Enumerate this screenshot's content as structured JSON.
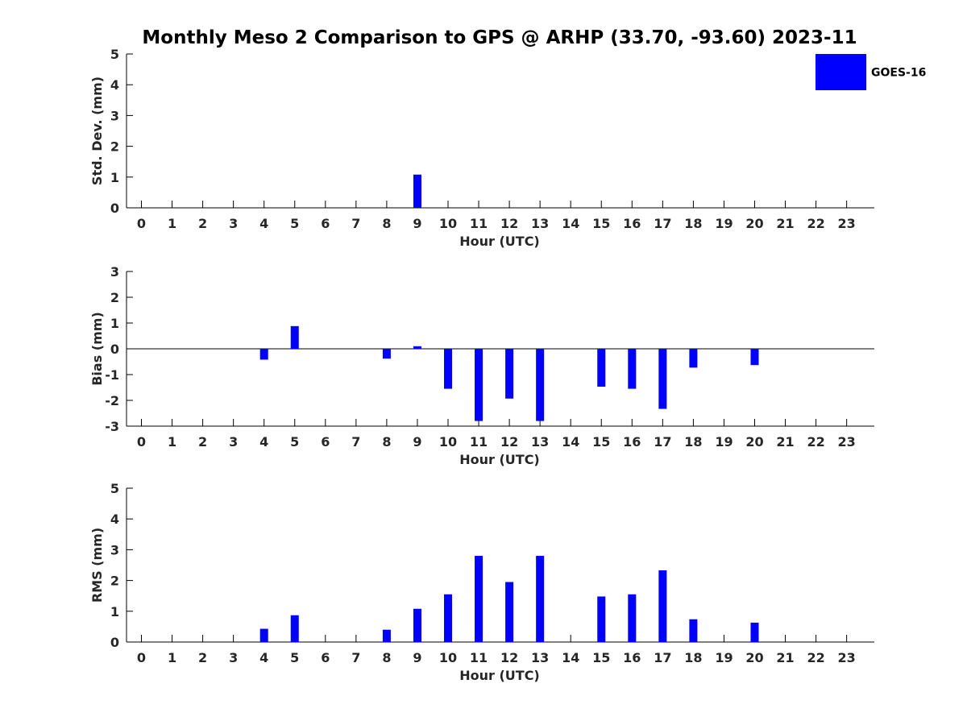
{
  "title": "Monthly Meso 2 Comparison to GPS @ ARHP (33.70, -93.60) 2023-11",
  "legend": {
    "label": "GOES-16",
    "color": "#0000ff",
    "placement": "top-right"
  },
  "chart_data": [
    {
      "type": "bar",
      "ylabel": "Std. Dev. (mm)",
      "xlabel": "Hour (UTC)",
      "ylim": [
        0,
        5
      ],
      "yticks": [
        "0",
        "1",
        "2",
        "3",
        "4",
        "5"
      ],
      "categories": [
        "0",
        "1",
        "2",
        "3",
        "4",
        "5",
        "6",
        "7",
        "8",
        "9",
        "10",
        "11",
        "12",
        "13",
        "14",
        "15",
        "16",
        "17",
        "18",
        "19",
        "20",
        "21",
        "22",
        "23"
      ],
      "series": [
        {
          "name": "GOES-16",
          "color": "#0000ff",
          "values": [
            0,
            0,
            0,
            0,
            0,
            0,
            0,
            0,
            0,
            1.08,
            0,
            0,
            0,
            0,
            0,
            0,
            0,
            0,
            0,
            0,
            0,
            0,
            0,
            0
          ]
        }
      ]
    },
    {
      "type": "bar",
      "ylabel": "Bias (mm)",
      "xlabel": "Hour (UTC)",
      "ylim": [
        -3,
        3
      ],
      "yticks": [
        "-3",
        "-2",
        "-1",
        "0",
        "1",
        "2",
        "3"
      ],
      "zero_line": true,
      "categories": [
        "0",
        "1",
        "2",
        "3",
        "4",
        "5",
        "6",
        "7",
        "8",
        "9",
        "10",
        "11",
        "12",
        "13",
        "14",
        "15",
        "16",
        "17",
        "18",
        "19",
        "20",
        "21",
        "22",
        "23"
      ],
      "series": [
        {
          "name": "GOES-16",
          "color": "#0000ff",
          "values": [
            0,
            0,
            0,
            0,
            -0.42,
            0.88,
            0,
            0,
            -0.38,
            0.1,
            -1.55,
            -2.8,
            -1.93,
            -2.8,
            0,
            -1.47,
            -1.55,
            -2.33,
            -0.73,
            0,
            -0.63,
            0,
            0,
            0
          ]
        }
      ]
    },
    {
      "type": "bar",
      "ylabel": "RMS (mm)",
      "xlabel": "Hour (UTC)",
      "ylim": [
        0,
        5
      ],
      "yticks": [
        "0",
        "1",
        "2",
        "3",
        "4",
        "5"
      ],
      "categories": [
        "0",
        "1",
        "2",
        "3",
        "4",
        "5",
        "6",
        "7",
        "8",
        "9",
        "10",
        "11",
        "12",
        "13",
        "14",
        "15",
        "16",
        "17",
        "18",
        "19",
        "20",
        "21",
        "22",
        "23"
      ],
      "series": [
        {
          "name": "GOES-16",
          "color": "#0000ff",
          "values": [
            0,
            0,
            0,
            0,
            0.43,
            0.87,
            0,
            0,
            0.4,
            1.08,
            1.55,
            2.8,
            1.95,
            2.8,
            0,
            1.48,
            1.55,
            2.33,
            0.74,
            0,
            0.63,
            0,
            0,
            0
          ]
        }
      ]
    }
  ]
}
